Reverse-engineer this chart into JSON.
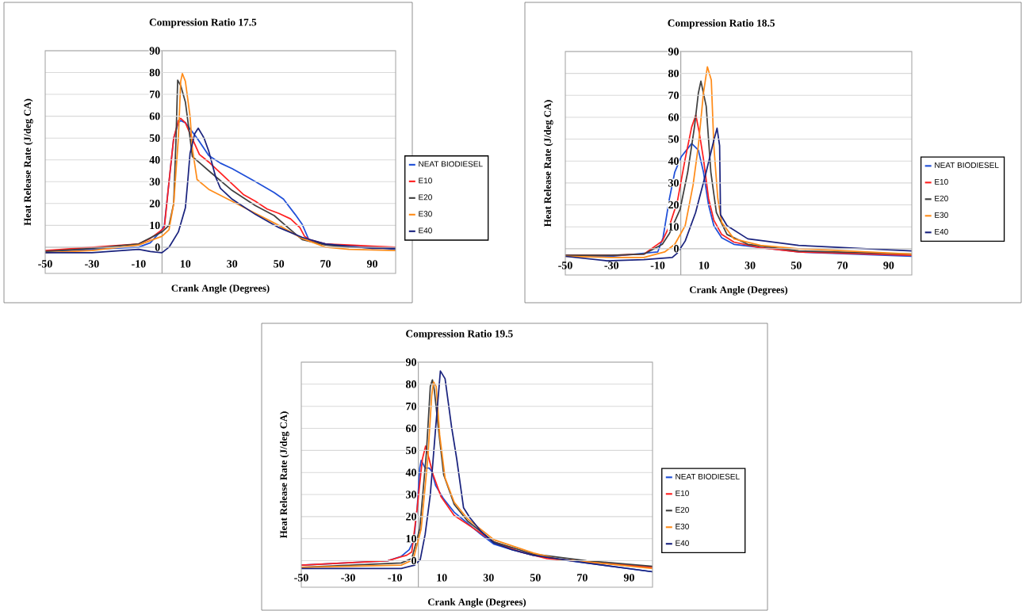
{
  "chart_data": [
    {
      "type": "line",
      "title": "Compression Ratio 17.5",
      "xlabel": "Crank Angle (Degrees)",
      "ylabel": "Heat Release Rate (J/deg CA)",
      "xlim": [
        -50,
        100
      ],
      "ylim": [
        -12,
        90
      ],
      "xticks": [
        -50,
        -30,
        -10,
        10,
        30,
        50,
        70,
        90
      ],
      "yticks": [
        0,
        10,
        20,
        30,
        40,
        50,
        60,
        70,
        80,
        90
      ],
      "grid": "y",
      "legend": "right",
      "series": [
        {
          "name": "NEAT BIODIESEL",
          "color": "#1f4fd8",
          "x": [
            -50,
            -30,
            -10,
            -5,
            0,
            1,
            3,
            5,
            7,
            8,
            10,
            15,
            20,
            25,
            30,
            40,
            48,
            52,
            57,
            60,
            63,
            70,
            80,
            90,
            100
          ],
          "values": [
            -2,
            -1,
            0,
            2,
            8,
            10,
            30,
            50,
            57,
            58,
            57,
            50,
            42,
            38.5,
            36,
            30,
            25,
            22,
            15,
            10.5,
            3,
            1.5,
            0.5,
            0,
            -1
          ]
        },
        {
          "name": "E10",
          "color": "#ff2020",
          "x": [
            -50,
            -30,
            -10,
            -5,
            0,
            1,
            3,
            5,
            7,
            8,
            10,
            12,
            16,
            20,
            25,
            30,
            35,
            40,
            45,
            50,
            55,
            59,
            61,
            63,
            70,
            80,
            90,
            100
          ],
          "values": [
            -1.5,
            0,
            1.5,
            4,
            8,
            9,
            30,
            50,
            58,
            59,
            57,
            52,
            42.5,
            39,
            34,
            29,
            24,
            21,
            17.5,
            15.5,
            13,
            9,
            5,
            3.5,
            1.5,
            1,
            0.5,
            0
          ]
        },
        {
          "name": "E20",
          "color": "#404040",
          "x": [
            -50,
            -30,
            -10,
            0,
            3,
            5,
            6,
            6.7,
            8,
            10,
            12,
            13,
            20,
            30,
            40,
            48,
            55,
            60,
            70,
            80,
            100
          ],
          "values": [
            -2,
            -0.5,
            1.5,
            7,
            10,
            20,
            50,
            76.5,
            74,
            66.5,
            50,
            41.5,
            35,
            26,
            19,
            14.5,
            8,
            3.5,
            1,
            0,
            -0.5
          ]
        },
        {
          "name": "E30",
          "color": "#ff8c1a",
          "x": [
            -50,
            -30,
            -10,
            0,
            3,
            5,
            7,
            8,
            8.7,
            10,
            12,
            13,
            15,
            20,
            30,
            40,
            50,
            60,
            65,
            70,
            80,
            100
          ],
          "values": [
            -2.5,
            -1.5,
            1,
            5,
            8,
            20,
            50,
            76,
            79.5,
            76,
            60,
            45,
            31,
            26.5,
            21,
            15.5,
            10,
            4,
            2,
            0,
            -1,
            -1.5
          ]
        },
        {
          "name": "E40",
          "color": "#1a237e",
          "x": [
            -50,
            -30,
            -10,
            -5,
            0,
            3,
            7,
            10,
            11,
            12,
            14,
            15.5,
            18,
            20,
            23,
            25,
            30,
            40,
            50,
            60,
            70,
            80,
            90,
            100
          ],
          "values": [
            -2.5,
            -2.5,
            -1,
            -2,
            -2.5,
            0,
            7,
            18,
            30,
            43,
            52,
            54.5,
            50,
            44,
            32,
            27,
            22,
            15,
            9,
            4.5,
            1.5,
            0.5,
            -0.5,
            -0.5
          ]
        }
      ]
    },
    {
      "type": "line",
      "title": "Compression Ratio 18.5",
      "xlabel": "Crank Angle (Degrees)",
      "ylabel": "Heat Release Rate (J/deg CA)",
      "xlim": [
        -50,
        100
      ],
      "ylim": [
        -12,
        90
      ],
      "xticks": [
        -50,
        -30,
        -10,
        10,
        30,
        50,
        70,
        90
      ],
      "yticks": [
        0,
        10,
        20,
        30,
        40,
        50,
        60,
        70,
        80,
        90
      ],
      "grid": "y",
      "legend": "right",
      "series": [
        {
          "name": "NEAT BIODIESEL",
          "color": "#1f4fd8",
          "x": [
            -50,
            -30,
            -10,
            -7.7,
            -4.9,
            -2.6,
            0.2,
            4.7,
            7.6,
            9.8,
            12,
            14.3,
            17.7,
            23,
            34.5,
            51,
            100
          ],
          "values": [
            -3,
            -3.5,
            -1.5,
            5,
            23,
            35,
            42,
            48,
            45,
            35,
            20,
            10.5,
            5,
            2,
            0.5,
            -1.5,
            -3.5
          ]
        },
        {
          "name": "E10",
          "color": "#ff2020",
          "x": [
            -50,
            -30,
            -16,
            -8,
            -4.9,
            -1.5,
            1.9,
            4.7,
            6.5,
            8,
            9.8,
            12,
            14.3,
            17.7,
            23,
            34,
            51,
            100
          ],
          "values": [
            -3,
            -3,
            -2.5,
            3.5,
            10.5,
            21.5,
            41,
            55.5,
            61,
            53,
            41,
            23,
            13,
            6.5,
            3,
            0.5,
            -1.5,
            -3
          ]
        },
        {
          "name": "E20",
          "color": "#404040",
          "x": [
            -50,
            -30,
            -16,
            -8,
            -4.9,
            -0.3,
            3,
            5.9,
            7.6,
            8.7,
            11,
            13,
            15.4,
            20,
            29,
            51,
            100
          ],
          "values": [
            -3,
            -3,
            -2.5,
            2,
            7,
            18,
            35,
            55.5,
            71,
            76.5,
            65,
            35,
            16.5,
            6.5,
            2,
            -1,
            -2.5
          ]
        },
        {
          "name": "E30",
          "color": "#ff8c1a",
          "x": [
            -50,
            -30,
            -16,
            -7,
            -2.6,
            1.9,
            5.3,
            7.6,
            9.8,
            11.5,
            13.2,
            14.3,
            16,
            17.7,
            23,
            34.5,
            51,
            100
          ],
          "values": [
            -3.5,
            -4,
            -4,
            -1.5,
            2,
            10.5,
            29,
            47,
            71,
            83,
            77,
            47,
            23,
            12,
            4.5,
            1.5,
            0,
            -2.5
          ]
        },
        {
          "name": "E40",
          "color": "#1a237e",
          "x": [
            -50,
            -32,
            -16,
            -3.7,
            -1.5,
            1.9,
            6.4,
            11,
            14.3,
            15.7,
            16.8,
            17.2,
            20,
            29,
            51,
            100
          ],
          "values": [
            -3.5,
            -5.5,
            -5,
            -4,
            -2,
            3.5,
            16.5,
            35,
            49.5,
            55,
            47,
            15.5,
            10.5,
            4.5,
            1.5,
            -1
          ]
        }
      ]
    },
    {
      "type": "line",
      "title": "Compression Ratio 19.5",
      "xlabel": "Crank Angle (Degrees)",
      "ylabel": "Heat Release Rate (J/deg CA)",
      "xlim": [
        -50,
        100
      ],
      "ylim": [
        -12,
        90
      ],
      "xticks": [
        -50,
        -30,
        -10,
        10,
        30,
        50,
        70,
        90
      ],
      "yticks": [
        0,
        10,
        20,
        30,
        40,
        50,
        60,
        70,
        80,
        90
      ],
      "grid": "y",
      "legend": "right",
      "series": [
        {
          "name": "NEAT BIODIESEL",
          "color": "#1f4fd8",
          "x": [
            -50,
            -13,
            -7.3,
            -3.9,
            -1.9,
            -0.5,
            0.6,
            1.2,
            2.9,
            4.6,
            5.7,
            7.4,
            10.8,
            15.3,
            21,
            26.6,
            32.3,
            40,
            49,
            60.5,
            71.8,
            100
          ],
          "values": [
            -2,
            0,
            2,
            5,
            9.5,
            24,
            42,
            45.5,
            42,
            42,
            40.5,
            34,
            28,
            22,
            17,
            12,
            7.5,
            5,
            2.5,
            0.5,
            -1,
            -5
          ]
        },
        {
          "name": "E10",
          "color": "#ff2020",
          "x": [
            -50,
            -13,
            -5,
            -2.8,
            -0.5,
            1.7,
            3.1,
            4.6,
            6.3,
            9.7,
            15.3,
            21,
            32.3,
            43.6,
            54.9,
            71.8,
            100
          ],
          "values": [
            -2,
            0,
            2.5,
            4,
            24,
            46,
            52,
            46,
            39,
            29,
            20.5,
            16.5,
            8.5,
            4,
            1,
            -0.5,
            -3
          ]
        },
        {
          "name": "E20",
          "color": "#404040",
          "x": [
            -50,
            -7.3,
            -2.8,
            0.6,
            3.4,
            5.1,
            6,
            6.8,
            8.5,
            10.8,
            15.3,
            21,
            32.3,
            49.2,
            71.8,
            100
          ],
          "values": [
            -3,
            -1,
            1,
            14.5,
            48.5,
            79,
            82,
            77.5,
            60.5,
            39,
            25.5,
            18,
            8.5,
            3,
            0,
            -2.5
          ]
        },
        {
          "name": "E30",
          "color": "#ff8c1a",
          "x": [
            -50,
            -7.3,
            -2.2,
            1.2,
            4,
            5.7,
            6.5,
            7.6,
            9.1,
            11.4,
            15.3,
            21,
            32.3,
            49.2,
            60.5,
            71.8,
            100
          ],
          "values": [
            -3,
            -2,
            0.5,
            14.5,
            46,
            75,
            81,
            79,
            57,
            37.5,
            26.5,
            19,
            9.5,
            3.5,
            0.5,
            -0.5,
            -3.5
          ]
        },
        {
          "name": "E40",
          "color": "#1a237e",
          "x": [
            -50,
            -7.3,
            -1.6,
            0.8,
            2.9,
            5.1,
            7.4,
            9.4,
            11.4,
            14.2,
            16.4,
            19.3,
            22,
            26.6,
            32.3,
            40,
            49,
            71.8,
            100
          ],
          "values": [
            -3.5,
            -3.5,
            -2,
            0.5,
            12,
            30,
            60.5,
            86,
            82.5,
            60.5,
            46,
            24,
            19.5,
            13.5,
            8,
            5,
            2.5,
            -1,
            -5
          ]
        }
      ]
    }
  ]
}
